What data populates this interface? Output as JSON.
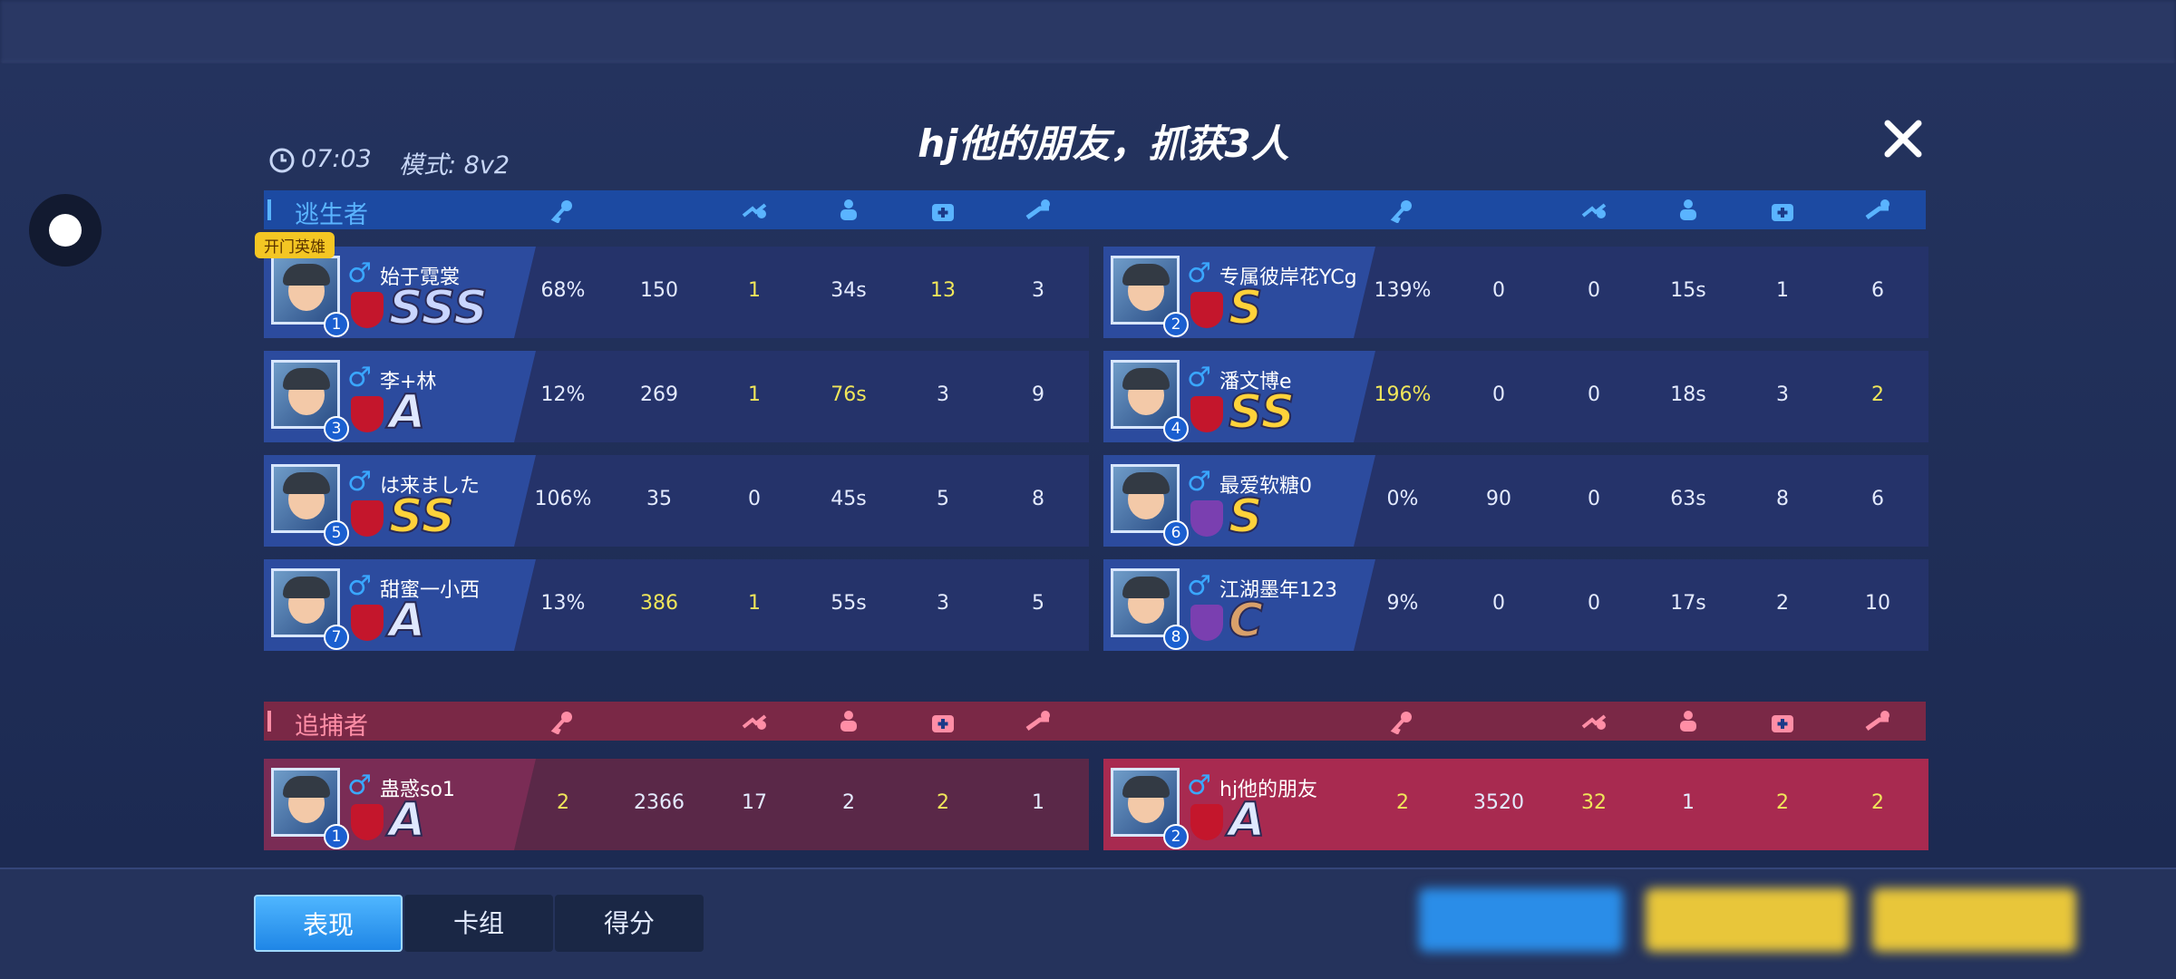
{
  "header": {
    "title": "hj他的朋友，抓获3人",
    "time": "07:03",
    "mode": "模式: 8v2"
  },
  "sections": [
    {
      "label": "逃生者",
      "color": "#5ab4ff",
      "bar_color": "#1c4aa2",
      "row_color": "#25336a",
      "panel_color": "#2c4b9e",
      "columns": [
        [
          {
            "number": "1",
            "name": "始于霓裳",
            "badge": "开门英雄",
            "rank": "SSS",
            "rank_color": "#c9d6ff",
            "faction_color": "#c4162c",
            "stats": [
              "68%",
              "150",
              "1",
              "34s",
              "13",
              "3"
            ],
            "highlighted": [
              2,
              4
            ]
          },
          {
            "number": "3",
            "name": "李+林",
            "rank": "A",
            "rank_color": "#dfe8ff",
            "faction_color": "#c4162c",
            "stats": [
              "12%",
              "269",
              "1",
              "76s",
              "3",
              "9"
            ],
            "highlighted": [
              2,
              3
            ]
          },
          {
            "number": "5",
            "name": "は来ました",
            "rank": "SS",
            "rank_color": "#ffd23a",
            "faction_color": "#c4162c",
            "stats": [
              "106%",
              "35",
              "0",
              "45s",
              "5",
              "8"
            ],
            "highlighted": []
          },
          {
            "number": "7",
            "name": "甜蜜一小西",
            "rank": "A",
            "rank_color": "#dfe8ff",
            "faction_color": "#c4162c",
            "stats": [
              "13%",
              "386",
              "1",
              "55s",
              "3",
              "5"
            ],
            "highlighted": [
              1,
              2
            ]
          }
        ],
        [
          {
            "number": "2",
            "name": "专属彼岸花YCg",
            "rank": "S",
            "rank_color": "#ffd23a",
            "faction_color": "#c4162c",
            "stats": [
              "139%",
              "0",
              "0",
              "15s",
              "1",
              "6"
            ],
            "highlighted": []
          },
          {
            "number": "4",
            "name": "潘文博e",
            "rank": "SS",
            "rank_color": "#ffd23a",
            "faction_color": "#c4162c",
            "stats": [
              "196%",
              "0",
              "0",
              "18s",
              "3",
              "2"
            ],
            "highlighted": [
              0,
              5
            ]
          },
          {
            "number": "6",
            "name": "最爱软糖0",
            "rank": "S",
            "rank_color": "#ffd23a",
            "faction_color": "#7a3fb0",
            "stats": [
              "0%",
              "90",
              "0",
              "63s",
              "8",
              "6"
            ],
            "highlighted": []
          },
          {
            "number": "8",
            "name": "江湖墨年123",
            "rank": "C",
            "rank_color": "#d9a06a",
            "faction_color": "#7a3fb0",
            "stats": [
              "9%",
              "0",
              "0",
              "17s",
              "2",
              "10"
            ],
            "highlighted": []
          }
        ]
      ]
    },
    {
      "label": "追捕者",
      "color": "#ff8ea6",
      "bar_color": "#7a2846",
      "row_color": "#5a2848",
      "panel_color": "#7a2c55",
      "columns": [
        [
          {
            "number": "1",
            "name": "蛊惑so1",
            "rank": "A",
            "rank_color": "#dfe8ff",
            "faction_color": "#c4162c",
            "stats": [
              "2",
              "2366",
              "17",
              "2",
              "2",
              "1"
            ],
            "highlighted": [
              0,
              4
            ]
          }
        ],
        [
          {
            "number": "2",
            "name": "hj他的朋友",
            "rank": "A",
            "rank_color": "#dfe8ff",
            "faction_color": "#c4162c",
            "row_color": "#a82a50",
            "stats": [
              "2",
              "3520",
              "32",
              "1",
              "2",
              "2"
            ],
            "highlighted": [
              0,
              2,
              4,
              5
            ]
          }
        ]
      ]
    }
  ],
  "highlight_color": "#f0e65a",
  "stat_color": "#e4ebff",
  "tabs": {
    "items": [
      "表现",
      "卡组",
      "得分"
    ],
    "active": 0
  }
}
